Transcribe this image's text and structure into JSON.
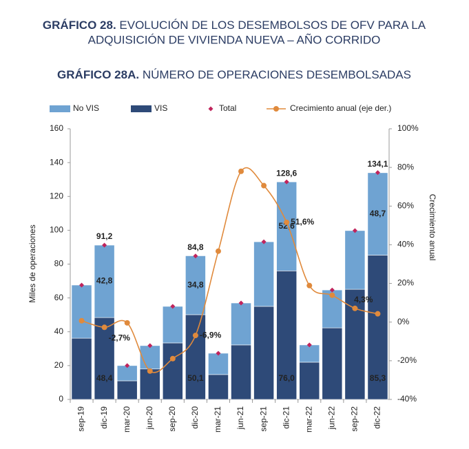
{
  "chart_data": {
    "type": "bar",
    "title_prefix": "GRÁFICO 28.",
    "title": "EVOLUCIÓN DE LOS DESEMBOLSOS DE OFV PARA LA",
    "title_line2": "ADQUISICIÓN DE VIVIENDA NUEVA – AÑO CORRIDO",
    "subtitle_prefix": "GRÁFICO 28A.",
    "subtitle": "NÚMERO DE OPERACIONES DESEMBOLSADAS",
    "y_label": "Miles de operaciones",
    "y2_label": "Crecimiento anual",
    "categories": [
      "sep-19",
      "dic-19",
      "mar-20",
      "jun-20",
      "sep-20",
      "dic-20",
      "mar-21",
      "jun-21",
      "sep-21",
      "dic-21",
      "mar-22",
      "jun-22",
      "sep-22",
      "dic-22"
    ],
    "series": [
      {
        "name": "No VIS",
        "color": "#6fa3d2",
        "mark": "stack",
        "values": [
          31.4,
          42.8,
          9,
          13.8,
          21.6,
          34.8,
          12.6,
          24.8,
          38.2,
          52.6,
          10.2,
          22.4,
          34.7,
          48.7
        ],
        "value_labels": [
          null,
          "42,8",
          null,
          null,
          null,
          "34,8",
          null,
          null,
          null,
          "52,6",
          null,
          null,
          null,
          "48,7"
        ]
      },
      {
        "name": "VIS",
        "color": "#2e4a78",
        "mark": "stack",
        "values": [
          36.2,
          48.4,
          11,
          18,
          33.4,
          50.1,
          14.7,
          32.2,
          55,
          76.0,
          22,
          42.3,
          65.1,
          85.3
        ],
        "value_labels": [
          null,
          "48,4",
          null,
          null,
          null,
          "50,1",
          null,
          null,
          null,
          "76,0",
          null,
          null,
          null,
          "85,3"
        ]
      },
      {
        "name": "Total",
        "color": "#c0245c",
        "mark": "diamond",
        "values": [
          67.6,
          91.2,
          20,
          31.8,
          55,
          84.8,
          27.3,
          57,
          93.2,
          128.6,
          32.2,
          64.7,
          99.8,
          134.1
        ],
        "value_labels": [
          null,
          "91,2",
          null,
          null,
          null,
          "84,8",
          null,
          null,
          null,
          "128,6",
          null,
          null,
          null,
          "134,1"
        ]
      },
      {
        "name": "Crecimiento anual (eje der.)",
        "color": "#e08a3c",
        "mark": "line",
        "axis": "y2",
        "values": [
          0.7,
          -2.7,
          -0.4,
          -25.3,
          -18.9,
          -6.9,
          36.7,
          78,
          70.6,
          51.6,
          18.9,
          13.9,
          7.1,
          4.3
        ],
        "value_labels": [
          null,
          "-2,7%",
          null,
          null,
          null,
          "-6,9%",
          null,
          null,
          null,
          "51,6%",
          null,
          null,
          null,
          "4,3%"
        ]
      }
    ],
    "ylim": [
      0,
      160
    ],
    "yticks": [
      0,
      20,
      40,
      60,
      80,
      100,
      120,
      140,
      160
    ],
    "y2lim": [
      -40,
      100
    ],
    "y2ticks": [
      {
        "value": -40,
        "label": "-40%"
      },
      {
        "value": -20,
        "label": "-20%"
      },
      {
        "value": 0,
        "label": "0%"
      },
      {
        "value": 20,
        "label": "20%"
      },
      {
        "value": 40,
        "label": "40%"
      },
      {
        "value": 60,
        "label": "60%"
      },
      {
        "value": 80,
        "label": "80%"
      },
      {
        "value": 100,
        "label": "100%"
      }
    ],
    "legend": "top"
  }
}
